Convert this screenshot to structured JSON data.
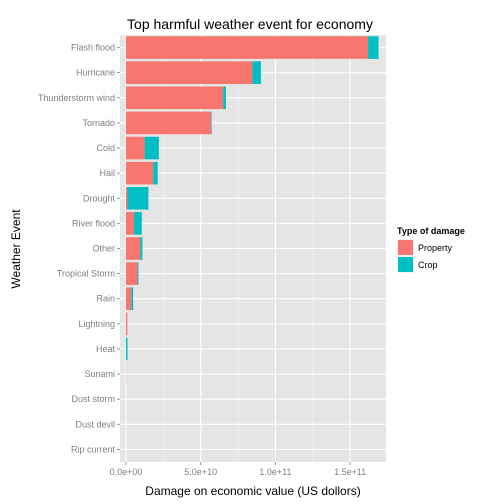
{
  "chart_data": {
    "type": "bar",
    "orientation": "horizontal",
    "stacked": true,
    "title": "Top harmful weather event for economy",
    "xlabel": "Damage on economic value (US dollors)",
    "ylabel": "Weather Event",
    "xlim": [
      -4000000000,
      174000000000
    ],
    "x_ticks": [
      0,
      50000000000,
      100000000000,
      150000000000
    ],
    "x_tick_labels": [
      "0.0e+00",
      "5.0e+10",
      "1.0e+11",
      "1.5e+11"
    ],
    "grid": true,
    "legend_position": "right",
    "legend_title": "Type of damage",
    "categories": [
      "Flash flood",
      "Hurricane",
      "Thunderstorm wind",
      "Tornado",
      "Cold",
      "Hail",
      "Drought",
      "River flood",
      "Other",
      "Tropical Storm",
      "Rain",
      "Lightning",
      "Heat",
      "Sunami",
      "Dust storm",
      "Dust devil",
      "Rip current"
    ],
    "series": [
      {
        "name": "Property",
        "color": "#f8766d",
        "values": [
          162000000000,
          84600000000,
          65000000000,
          56900000000,
          12500000000,
          18200000000,
          1000000000,
          5300000000,
          9500000000,
          7700000000,
          3600000000,
          930000000,
          20000000,
          140000000,
          6000000,
          700000,
          160000
        ]
      },
      {
        "name": "Crop",
        "color": "#00bfc4",
        "values": [
          7000000000,
          5700000000,
          1900000000,
          400000000,
          9500000000,
          3000000000,
          14000000000,
          5300000000,
          1500000000,
          700000000,
          1200000000,
          100000,
          1000000000,
          20000,
          3600000,
          0,
          0
        ]
      }
    ]
  },
  "colors": {
    "panel_background": "#e5e5e5",
    "grid_major": "#ffffff",
    "grid_minor": "#f2f2f2"
  }
}
